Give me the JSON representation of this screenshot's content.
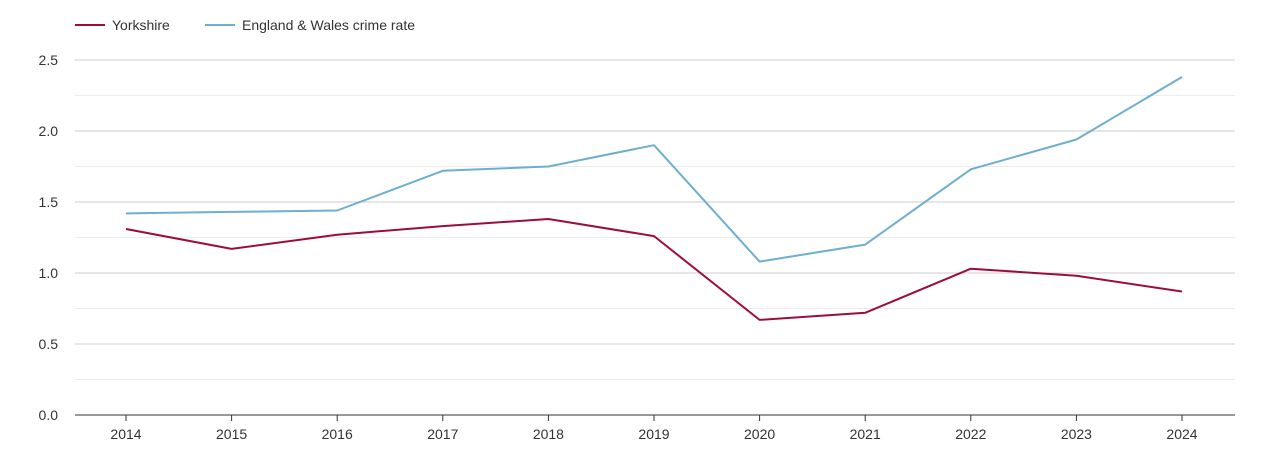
{
  "chart_data": {
    "type": "line",
    "title": "",
    "xlabel": "",
    "ylabel": "",
    "categories": [
      "2014",
      "2015",
      "2016",
      "2017",
      "2018",
      "2019",
      "2020",
      "2021",
      "2022",
      "2023",
      "2024"
    ],
    "ylim": [
      0,
      2.5
    ],
    "yticks": [
      "0.0",
      "0.5",
      "1.0",
      "1.5",
      "2.0",
      "2.5"
    ],
    "grid": true,
    "legend_position": "top-left",
    "series": [
      {
        "name": "Yorkshire",
        "color": "#9b0e3a",
        "values": [
          1.31,
          1.17,
          1.27,
          1.33,
          1.38,
          1.26,
          0.67,
          0.72,
          1.03,
          0.98,
          0.87
        ]
      },
      {
        "name": "England & Wales crime rate",
        "color": "#6eaecf",
        "values": [
          1.42,
          1.43,
          1.44,
          1.72,
          1.75,
          1.9,
          1.08,
          1.2,
          1.73,
          1.94,
          2.38
        ]
      }
    ]
  }
}
